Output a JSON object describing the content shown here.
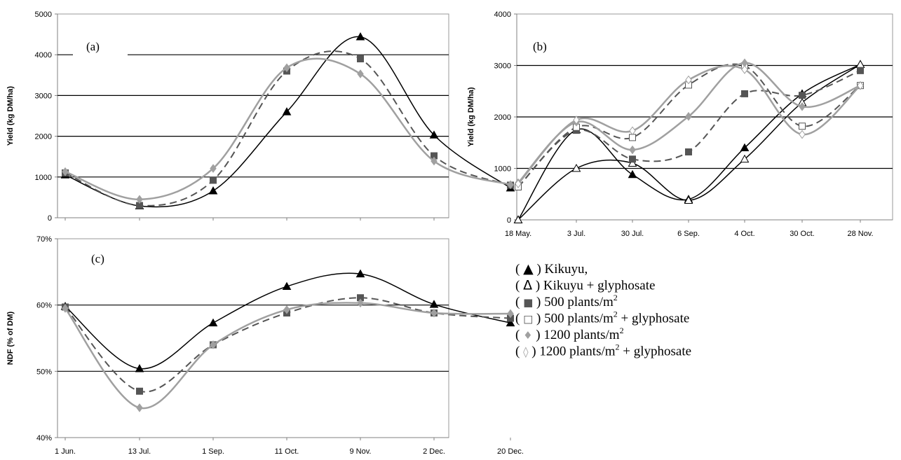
{
  "chart_data": [
    {
      "id": "a",
      "type": "line",
      "panel_label": "(a)",
      "ylabel": "Yield (kg DM/ha)",
      "xlabel": "",
      "ylim": [
        0,
        5000
      ],
      "yticks": [
        0,
        1000,
        2000,
        3000,
        4000,
        5000
      ],
      "ytick_labels": [
        "0",
        "1000",
        "2000",
        "3000",
        "4000",
        "5000"
      ],
      "gridlines": [
        1000,
        2000,
        3000,
        4000
      ],
      "categories": [
        "1 Jun.",
        "13 Jul.",
        "1 Sep.",
        "11 Oct.",
        "9 Nov.",
        "2 Dec.",
        "20 Dec."
      ],
      "show_xtick_labels": false,
      "series": [
        {
          "key": "kikuyu",
          "values": [
            1050,
            290,
            660,
            2600,
            4440,
            2030,
            730
          ]
        },
        {
          "key": "p500",
          "values": [
            1100,
            300,
            920,
            3600,
            3900,
            1520,
            800
          ]
        },
        {
          "key": "p1200",
          "values": [
            1130,
            450,
            1210,
            3680,
            3530,
            1390,
            810
          ]
        }
      ]
    },
    {
      "id": "b",
      "type": "line",
      "panel_label": "(b)",
      "ylabel": "Yield (kg DM/ha)",
      "xlabel": "",
      "ylim": [
        0,
        4000
      ],
      "yticks": [
        0,
        1000,
        2000,
        3000,
        4000
      ],
      "ytick_labels": [
        "0",
        "1000",
        "2000",
        "3000",
        "4000"
      ],
      "gridlines": [
        1000,
        2000,
        3000
      ],
      "categories": [
        "18 May.",
        "3 Jul.",
        "30 Jul.",
        "6 Sep.",
        "4 Oct.",
        "30 Oct.",
        "28 Nov."
      ],
      "show_xtick_labels": true,
      "series": [
        {
          "key": "kikuyu",
          "values": [
            0,
            1750,
            880,
            400,
            1400,
            2450,
            3020
          ]
        },
        {
          "key": "kikuyu_gly",
          "values": [
            0,
            1000,
            1100,
            380,
            1180,
            2280,
            3020
          ]
        },
        {
          "key": "p500",
          "values": [
            640,
            1740,
            1180,
            1320,
            2450,
            2420,
            2900
          ]
        },
        {
          "key": "p500_gly",
          "values": [
            640,
            1800,
            1600,
            2620,
            2990,
            1820,
            2610
          ]
        },
        {
          "key": "p1200",
          "values": [
            720,
            1900,
            1360,
            2010,
            3050,
            2200,
            2610
          ]
        },
        {
          "key": "p1200_gly",
          "values": [
            700,
            1940,
            1730,
            2720,
            2920,
            1660,
            2610
          ]
        }
      ]
    },
    {
      "id": "c",
      "type": "line",
      "panel_label": "(c)",
      "ylabel": "NDF (% of DM)",
      "xlabel": "",
      "ylim": [
        40,
        70
      ],
      "yticks": [
        40,
        50,
        60,
        70
      ],
      "ytick_labels": [
        "40%",
        "50%",
        "60%",
        "70%"
      ],
      "gridlines": [
        50,
        60
      ],
      "categories": [
        "1 Jun.",
        "13 Jul.",
        "1 Sep.",
        "11 Oct.",
        "9 Nov.",
        "2 Dec.",
        "20 Dec."
      ],
      "show_xtick_labels": true,
      "series": [
        {
          "key": "kikuyu",
          "values": [
            59.8,
            50.4,
            57.3,
            62.8,
            64.7,
            60.1,
            57.3
          ]
        },
        {
          "key": "p500",
          "values": [
            59.7,
            47.0,
            54.0,
            58.8,
            61.1,
            58.8,
            58.0
          ]
        },
        {
          "key": "p1200",
          "values": [
            59.5,
            44.5,
            54.0,
            59.3,
            60.3,
            58.8,
            58.7
          ]
        }
      ]
    }
  ],
  "series_styles": {
    "kikuyu": {
      "color": "#000000",
      "dash": "none",
      "marker": "triangle",
      "filled": true
    },
    "kikuyu_gly": {
      "color": "#000000",
      "dash": "none",
      "marker": "triangle",
      "filled": false
    },
    "p500": {
      "color": "#555555",
      "dash": "dashed",
      "marker": "square",
      "filled": true
    },
    "p500_gly": {
      "color": "#555555",
      "dash": "dashed",
      "marker": "square",
      "filled": false
    },
    "p1200": {
      "color": "#a0a0a0",
      "dash": "none",
      "marker": "diamond",
      "filled": true
    },
    "p1200_gly": {
      "color": "#a0a0a0",
      "dash": "none",
      "marker": "diamond",
      "filled": false
    }
  },
  "legend": {
    "items": [
      {
        "key": "kikuyu",
        "symbol": "▲",
        "text": "Kikuyu,",
        "sup": "",
        "suffix": ""
      },
      {
        "key": "kikuyu_gly",
        "symbol": "Δ",
        "text": "Kikuyu + glyphosate",
        "sup": "",
        "suffix": ""
      },
      {
        "key": "p500",
        "symbol": "■",
        "text": "500 plants/m",
        "sup": "2",
        "suffix": ""
      },
      {
        "key": "p500_gly",
        "symbol": "□",
        "text": "500 plants/m",
        "sup": "2",
        "suffix": " + glyphosate"
      },
      {
        "key": "p1200",
        "symbol": "♦",
        "text": "1200 plants/m",
        "sup": "2",
        "suffix": ""
      },
      {
        "key": "p1200_gly",
        "symbol": "◊",
        "text": "1200 plants/m",
        "sup": "2",
        "suffix": " + glyphosate"
      }
    ]
  }
}
